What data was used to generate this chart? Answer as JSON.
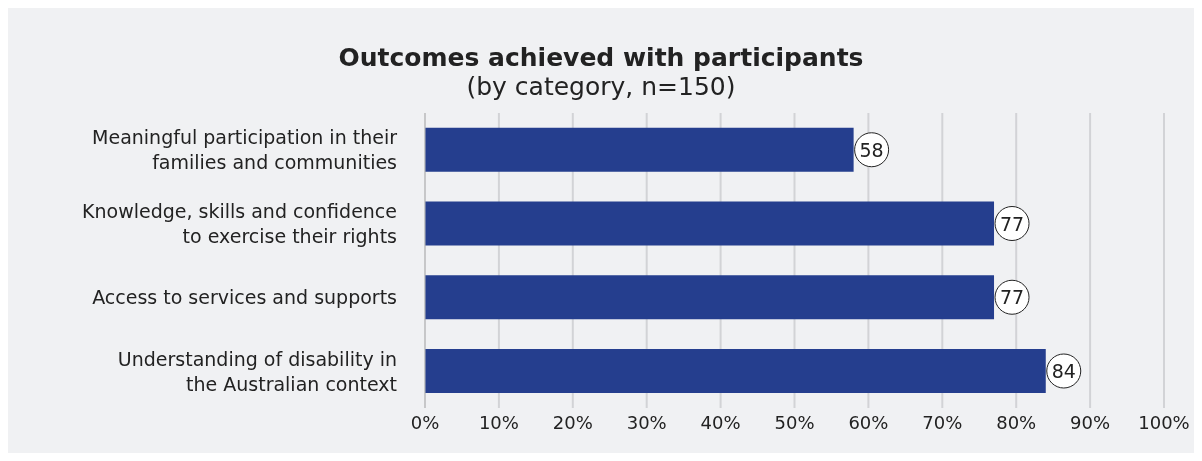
{
  "chart_data": {
    "type": "bar",
    "orientation": "horizontal",
    "title": "Outcomes achieved with participants",
    "subtitle": "(by category, n=150)",
    "categories": [
      "Meaningful participation in their families and communities",
      "Knowledge, skills and confidence to exercise their rights",
      "Access to services and supports",
      "Understanding of disability in the Australian context"
    ],
    "values": [
      58,
      77,
      77,
      84
    ],
    "color": "#253e8e",
    "xlim": [
      0,
      100
    ],
    "xticks": [
      {
        "value": 0,
        "label": "0%"
      },
      {
        "value": 10,
        "label": "10%"
      },
      {
        "value": 20,
        "label": "20%"
      },
      {
        "value": 30,
        "label": "30%"
      },
      {
        "value": 40,
        "label": "40%"
      },
      {
        "value": 50,
        "label": "50%"
      },
      {
        "value": 60,
        "label": "60%"
      },
      {
        "value": 70,
        "label": "70%"
      },
      {
        "value": 80,
        "label": "80%"
      },
      {
        "value": 90,
        "label": "90%"
      },
      {
        "value": 100,
        "label": "100%"
      }
    ],
    "grid": "x",
    "data_labels": true
  }
}
